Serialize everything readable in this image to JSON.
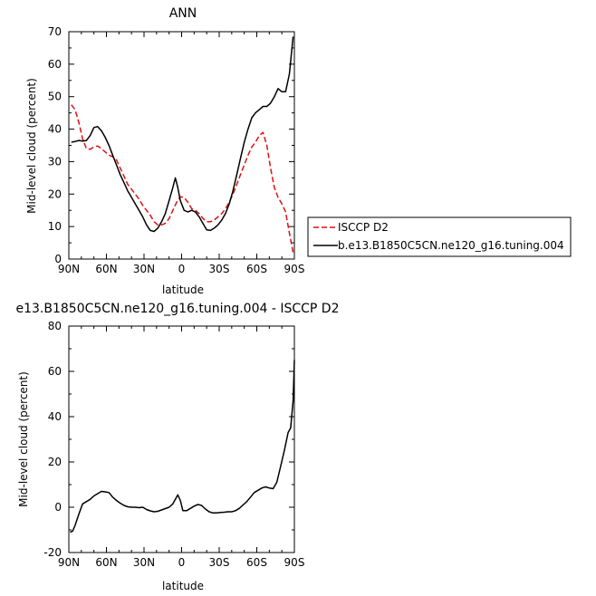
{
  "chart_data": [
    {
      "type": "line",
      "title": "ANN",
      "xlabel": "latitude",
      "ylabel": "Mid-level cloud (percent)",
      "x_tick_labels": [
        "90N",
        "60N",
        "30N",
        "0",
        "30S",
        "60S",
        "90S"
      ],
      "y_ticks": [
        0,
        10,
        20,
        30,
        40,
        50,
        60,
        70
      ],
      "ylim": [
        0,
        70
      ],
      "xlim": [
        90,
        -90
      ],
      "legend_placement": "right",
      "series": [
        {
          "name": "ISCCP D2",
          "color": "#dd1111",
          "style": "dashed",
          "points": [
            [
              88,
              47.5
            ],
            [
              85,
              46
            ],
            [
              82,
              42
            ],
            [
              79,
              37
            ],
            [
              76,
              34
            ],
            [
              73,
              33.8
            ],
            [
              70,
              34.5
            ],
            [
              67,
              34.8
            ],
            [
              64,
              34
            ],
            [
              61,
              33
            ],
            [
              58,
              32
            ],
            [
              55,
              31.5
            ],
            [
              52,
              30.5
            ],
            [
              49,
              28
            ],
            [
              46,
              25.5
            ],
            [
              43,
              23
            ],
            [
              40,
              21.5
            ],
            [
              37,
              20
            ],
            [
              34,
              18.5
            ],
            [
              31,
              16.5
            ],
            [
              28,
              15
            ],
            [
              25,
              13.5
            ],
            [
              22,
              11.5
            ],
            [
              19,
              10.5
            ],
            [
              16,
              10.5
            ],
            [
              13,
              11
            ],
            [
              10,
              12.5
            ],
            [
              7,
              15
            ],
            [
              4,
              17.5
            ],
            [
              1,
              19.2
            ],
            [
              -2,
              19
            ],
            [
              -5,
              17.5
            ],
            [
              -8,
              15.5
            ],
            [
              -11,
              15
            ],
            [
              -14,
              14
            ],
            [
              -17,
              12.5
            ],
            [
              -20,
              11.5
            ],
            [
              -23,
              11.5
            ],
            [
              -26,
              12
            ],
            [
              -29,
              13
            ],
            [
              -32,
              14
            ],
            [
              -35,
              15.5
            ],
            [
              -38,
              17.5
            ],
            [
              -41,
              20
            ],
            [
              -44,
              23
            ],
            [
              -47,
              26
            ],
            [
              -50,
              29
            ],
            [
              -53,
              32
            ],
            [
              -56,
              34.5
            ],
            [
              -59,
              36
            ],
            [
              -62,
              38
            ],
            [
              -65,
              39
            ],
            [
              -68,
              35
            ],
            [
              -71,
              28
            ],
            [
              -74,
              22
            ],
            [
              -77,
              19
            ],
            [
              -80,
              17
            ],
            [
              -83,
              14.5
            ],
            [
              -86,
              8
            ],
            [
              -89,
              2
            ]
          ]
        },
        {
          "name": "b.e13.B1850C5CN.ne120_g16.tuning.004",
          "color": "#000000",
          "style": "solid",
          "points": [
            [
              88,
              36
            ],
            [
              85,
              36.2
            ],
            [
              82,
              36.5
            ],
            [
              79,
              36.3
            ],
            [
              76,
              36.5
            ],
            [
              73,
              38
            ],
            [
              70,
              40.5
            ],
            [
              67,
              40.8
            ],
            [
              64,
              39.5
            ],
            [
              61,
              37.5
            ],
            [
              58,
              35
            ],
            [
              55,
              32
            ],
            [
              52,
              29
            ],
            [
              49,
              26
            ],
            [
              46,
              23.5
            ],
            [
              43,
              21
            ],
            [
              40,
              19
            ],
            [
              37,
              17
            ],
            [
              34,
              15
            ],
            [
              31,
              13
            ],
            [
              28,
              10.5
            ],
            [
              25,
              8.8
            ],
            [
              22,
              8.5
            ],
            [
              19,
              9.5
            ],
            [
              16,
              11.5
            ],
            [
              13,
              14
            ],
            [
              10,
              18
            ],
            [
              7,
              22
            ],
            [
              5,
              25
            ],
            [
              3,
              22
            ],
            [
              1,
              18
            ],
            [
              -2,
              15
            ],
            [
              -5,
              14.5
            ],
            [
              -8,
              15
            ],
            [
              -11,
              14.5
            ],
            [
              -14,
              13
            ],
            [
              -17,
              11
            ],
            [
              -20,
              9
            ],
            [
              -23,
              8.8
            ],
            [
              -26,
              9.5
            ],
            [
              -29,
              10.5
            ],
            [
              -32,
              12
            ],
            [
              -35,
              14
            ],
            [
              -38,
              17
            ],
            [
              -41,
              21
            ],
            [
              -44,
              26
            ],
            [
              -47,
              31
            ],
            [
              -50,
              36
            ],
            [
              -53,
              40
            ],
            [
              -56,
              43.5
            ],
            [
              -59,
              45
            ],
            [
              -62,
              46
            ],
            [
              -65,
              47
            ],
            [
              -68,
              47
            ],
            [
              -71,
              48
            ],
            [
              -74,
              50
            ],
            [
              -77,
              52.5
            ],
            [
              -80,
              51.5
            ],
            [
              -83,
              51.5
            ],
            [
              -86,
              57
            ],
            [
              -89,
              68.5
            ]
          ]
        }
      ]
    },
    {
      "type": "line",
      "title": "e13.B1850C5CN.ne120_g16.tuning.004 - ISCCP D2",
      "xlabel": "latitude",
      "ylabel": "Mid-level cloud (percent)",
      "x_tick_labels": [
        "90N",
        "60N",
        "30N",
        "0",
        "30S",
        "60S",
        "90S"
      ],
      "y_ticks": [
        -20,
        0,
        20,
        40,
        60,
        80
      ],
      "ylim": [
        -20,
        80
      ],
      "xlim": [
        90,
        -90
      ],
      "series": [
        {
          "color": "#000000",
          "style": "solid",
          "points": [
            [
              89,
              -11
            ],
            [
              87,
              -10.5
            ],
            [
              85,
              -8
            ],
            [
              82,
              -3
            ],
            [
              79,
              1.5
            ],
            [
              76,
              2.5
            ],
            [
              73,
              3.5
            ],
            [
              70,
              5
            ],
            [
              67,
              6
            ],
            [
              64,
              7
            ],
            [
              61,
              6.8
            ],
            [
              58,
              6.5
            ],
            [
              55,
              4.5
            ],
            [
              52,
              3
            ],
            [
              49,
              1.8
            ],
            [
              46,
              0.8
            ],
            [
              43,
              0.2
            ],
            [
              40,
              0
            ],
            [
              37,
              0
            ],
            [
              34,
              -0.2
            ],
            [
              31,
              0
            ],
            [
              28,
              -1
            ],
            [
              25,
              -1.6
            ],
            [
              22,
              -2
            ],
            [
              19,
              -1.8
            ],
            [
              16,
              -1.2
            ],
            [
              13,
              -0.6
            ],
            [
              10,
              0
            ],
            [
              7,
              1.5
            ],
            [
              5,
              3.5
            ],
            [
              3,
              5.5
            ],
            [
              1,
              3
            ],
            [
              -1,
              -1.5
            ],
            [
              -4,
              -1.5
            ],
            [
              -7,
              -0.5
            ],
            [
              -10,
              0.5
            ],
            [
              -13,
              1.2
            ],
            [
              -16,
              0.8
            ],
            [
              -19,
              -0.8
            ],
            [
              -22,
              -2
            ],
            [
              -25,
              -2.5
            ],
            [
              -28,
              -2.5
            ],
            [
              -31,
              -2.3
            ],
            [
              -34,
              -2.2
            ],
            [
              -37,
              -2
            ],
            [
              -40,
              -2
            ],
            [
              -43,
              -1.5
            ],
            [
              -46,
              -0.5
            ],
            [
              -49,
              1
            ],
            [
              -52,
              2.5
            ],
            [
              -55,
              4.5
            ],
            [
              -58,
              6.5
            ],
            [
              -61,
              7.5
            ],
            [
              -64,
              8.5
            ],
            [
              -67,
              9
            ],
            [
              -70,
              8.5
            ],
            [
              -73,
              8.2
            ],
            [
              -76,
              11
            ],
            [
              -79,
              18
            ],
            [
              -82,
              25
            ],
            [
              -85,
              33
            ],
            [
              -87,
              35
            ],
            [
              -89,
              47
            ],
            [
              -90,
              65
            ]
          ]
        }
      ]
    }
  ]
}
